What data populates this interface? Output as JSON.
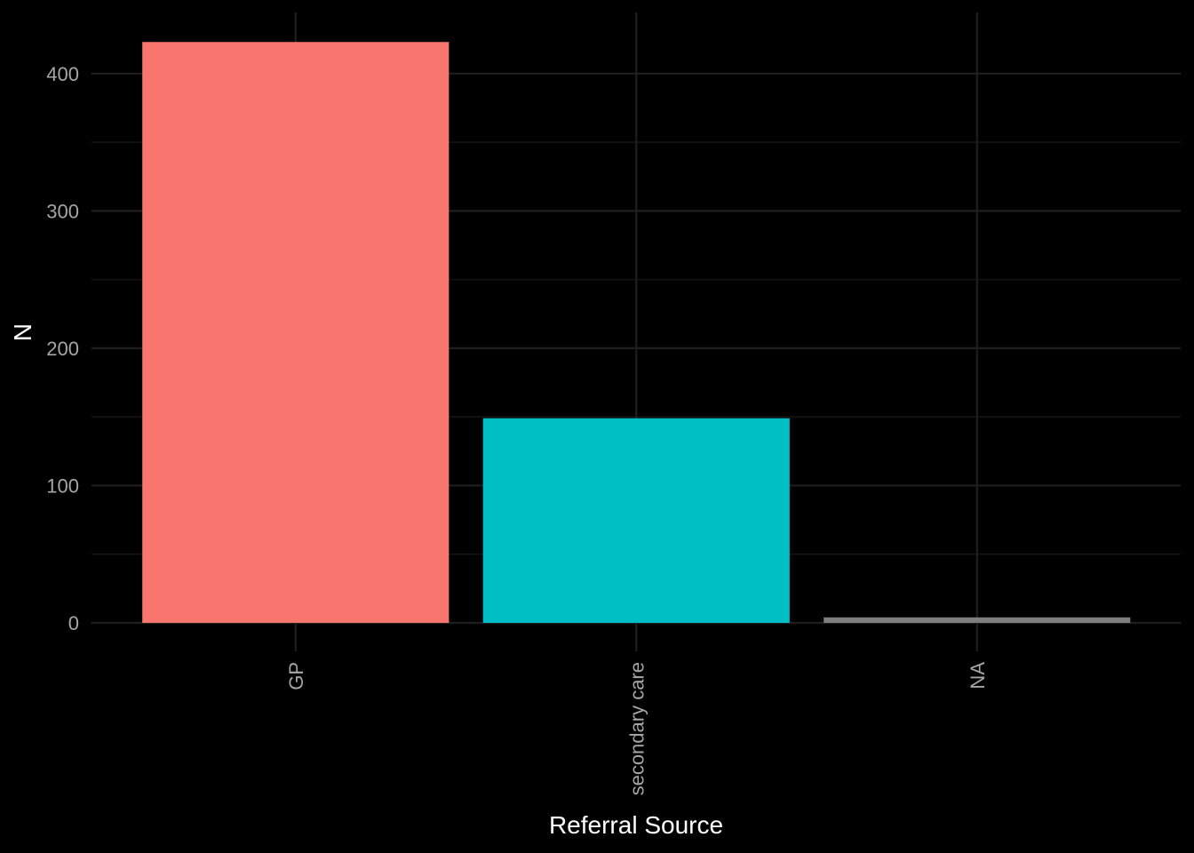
{
  "chart_data": {
    "type": "bar",
    "categories": [
      "GP",
      "secondary care",
      "NA"
    ],
    "values": [
      423,
      149,
      4
    ],
    "colors": [
      "#F8766D",
      "#00BFC4",
      "#7F7F7F"
    ],
    "title": "",
    "xlabel": "Referral Source",
    "ylabel": "N",
    "ylim": [
      0,
      440
    ],
    "yticks": [
      0,
      100,
      200,
      300,
      400
    ],
    "ytick_labels": [
      "0",
      "100",
      "200",
      "300",
      "400"
    ],
    "grid": true,
    "legend": "none",
    "x_tick_label_rotation": "vertical",
    "background": "#000000",
    "tick_label_color": "#A6A6A6",
    "axis_title_color": "#FFFFFF"
  }
}
